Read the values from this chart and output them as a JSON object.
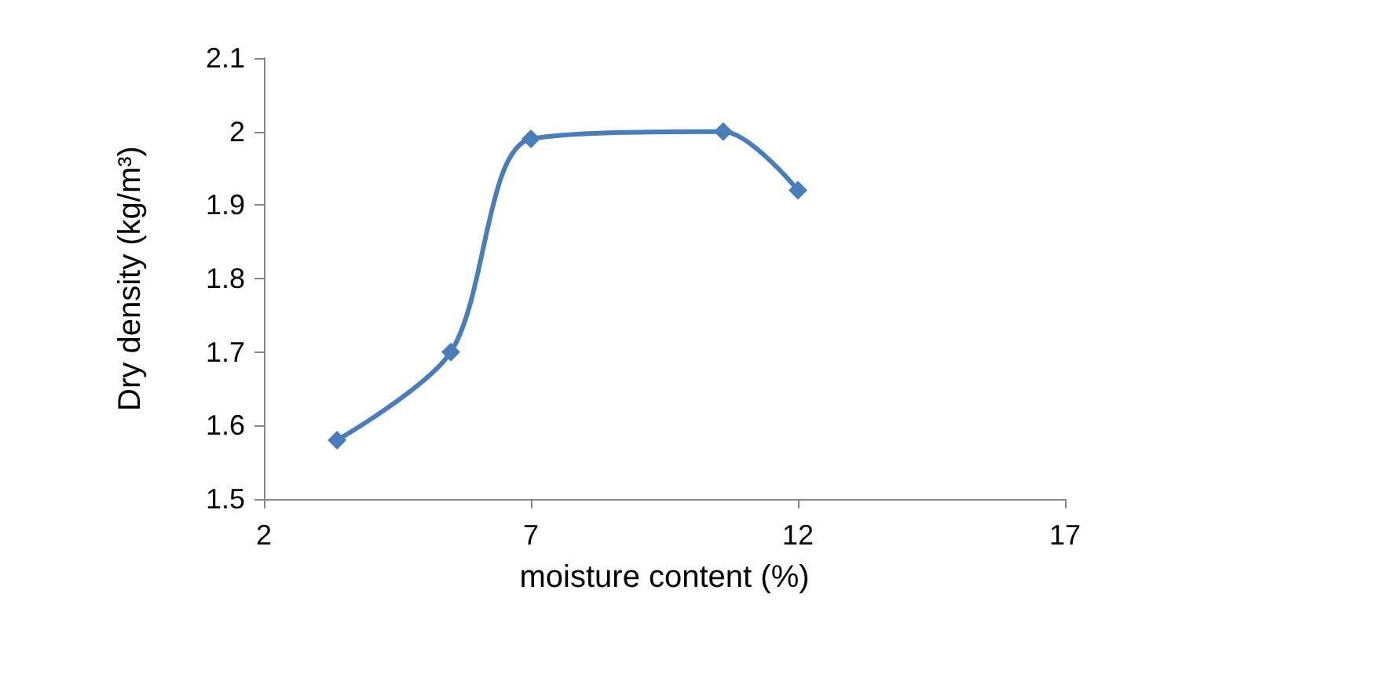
{
  "chart_data": {
    "type": "line",
    "xlabel": "moisture content (%)",
    "ylabel": "Dry density (kg/m³)",
    "x": [
      3.37,
      5.5,
      7,
      10.6,
      12
    ],
    "series": [
      {
        "color": "#4a7ebb",
        "values": [
          1.58,
          1.7,
          1.99,
          2.0,
          1.92
        ]
      }
    ],
    "xlim": [
      2,
      17
    ],
    "xticks": [
      2,
      7,
      12,
      17
    ],
    "ylim": [
      1.5,
      2.1
    ],
    "yticks": [
      1.5,
      1.6,
      1.7,
      1.8,
      1.9,
      2,
      2.1
    ],
    "marker": "diamond",
    "line_style": "solid",
    "grid": false
  }
}
